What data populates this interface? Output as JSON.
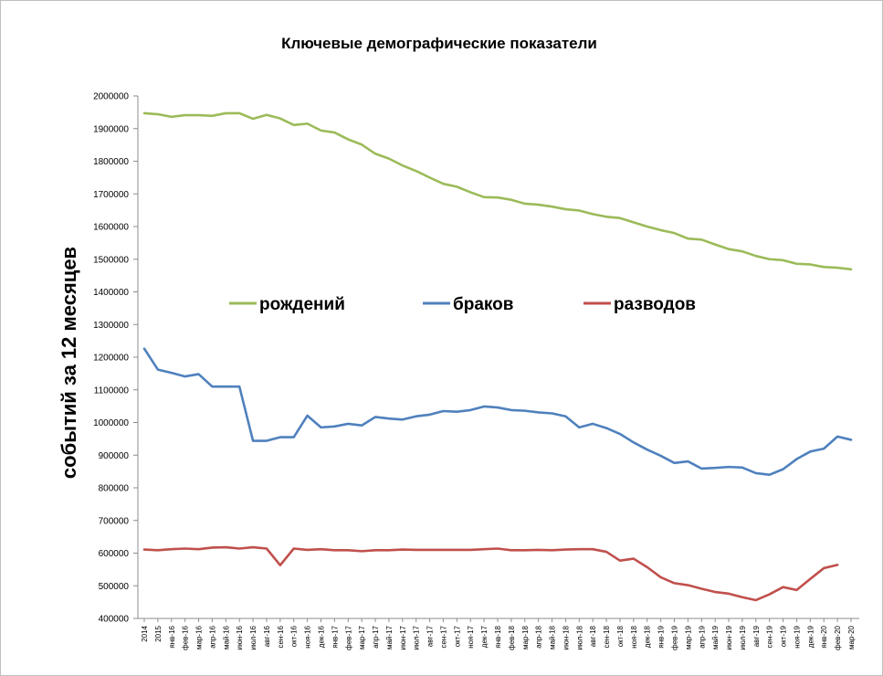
{
  "chart_data": {
    "type": "line",
    "title": "Ключевые демографические показатели",
    "ylabel": "событий за 12  месяцев",
    "xlabel": "",
    "ylim": [
      400000,
      2000000
    ],
    "yticks": [
      400000,
      500000,
      600000,
      700000,
      800000,
      900000,
      1000000,
      1100000,
      1200000,
      1300000,
      1400000,
      1500000,
      1600000,
      1700000,
      1800000,
      1900000,
      2000000
    ],
    "grid": "none",
    "legend": "center",
    "x": [
      "2014",
      "2015",
      "янв-16",
      "фев-16",
      "мар-16",
      "апр-16",
      "май-16",
      "июн-16",
      "июл-16",
      "авг-16",
      "сен-16",
      "окт-16",
      "ноя-16",
      "дек-16",
      "янв-17",
      "фев-17",
      "мар-17",
      "апр-17",
      "май-17",
      "июн-17",
      "июл-17",
      "авг-17",
      "сен-17",
      "окт-17",
      "ноя-17",
      "дек-17",
      "янв-18",
      "фев-18",
      "мар-18",
      "апр-18",
      "май-18",
      "июн-18",
      "июл-18",
      "авг-18",
      "сен-18",
      "окт-18",
      "ноя-18",
      "дек-18",
      "янв-19",
      "фев-19",
      "мар-19",
      "апр-19",
      "май-19",
      "июн-19",
      "июл-19",
      "авг-19",
      "сен-19",
      "окт-19",
      "ноя-19",
      "дек-19",
      "янв-20",
      "фев-20",
      "мар-20"
    ],
    "xticks_shown": [
      "2014",
      "2015",
      "янв-16",
      "фев-16",
      "мар-16",
      "апр-16",
      "май-16",
      "июн-16",
      "июл-16",
      "авг-16",
      "сен-16",
      "окт-16",
      "ноя-16",
      "дек-16",
      "янв-17",
      "фев-17",
      "мар-17",
      "апр-17",
      "май-17",
      "июн-17",
      "июл-17",
      "авг-17",
      "сен-17",
      "окт-17",
      "ноя-17",
      "дек-17",
      "янв-18",
      "фев-18",
      "мар-18",
      "апр-18",
      "май-18",
      "июн-18",
      "июл-18",
      "авг-18",
      "сен-18",
      "окт-18",
      "ноя-18",
      "дек-18",
      "янв-19",
      "фев-19",
      "мар-19",
      "апр-19",
      "май-19",
      "июн-19",
      "июл-19",
      "авг-19",
      "сен-19",
      "окт-19",
      "ноя-19",
      "дек-19",
      "янв-20",
      "фев-20",
      "мар-20"
    ],
    "series": [
      {
        "name": "рождений",
        "color": "#9bbb59",
        "values": [
          1947000,
          1944000,
          1936000,
          1941000,
          1941000,
          1939000,
          1947000,
          1947000,
          1930000,
          1942000,
          1931000,
          1911000,
          1915000,
          1894000,
          1888000,
          1867000,
          1851000,
          1823000,
          1808000,
          1787000,
          1770000,
          1750000,
          1731000,
          1722000,
          1705000,
          1690000,
          1689000,
          1682000,
          1670000,
          1667000,
          1661000,
          1653000,
          1649000,
          1638000,
          1630000,
          1626000,
          1613000,
          1600000,
          1589000,
          1580000,
          1563000,
          1560000,
          1545000,
          1531000,
          1524000,
          1510000,
          1500000,
          1497000,
          1486000,
          1484000,
          1476000,
          1474000,
          1469000
        ]
      },
      {
        "name": "браков",
        "color": "#4f81bd",
        "values": [
          1226000,
          1162000,
          1152000,
          1141000,
          1148000,
          1110000,
          1110000,
          1110000,
          944000,
          944000,
          955000,
          955000,
          1021000,
          985000,
          988000,
          996000,
          991000,
          1017000,
          1012000,
          1009000,
          1019000,
          1024000,
          1035000,
          1033000,
          1038000,
          1049000,
          1046000,
          1038000,
          1036000,
          1031000,
          1028000,
          1019000,
          985000,
          996000,
          983000,
          965000,
          939000,
          917000,
          898000,
          876000,
          881000,
          859000,
          861000,
          864000,
          862000,
          845000,
          840000,
          857000,
          888000,
          911000,
          920000,
          957000,
          947000
        ]
      },
      {
        "name": "разводов",
        "color": "#c0504d",
        "values": [
          611000,
          609000,
          612000,
          614000,
          612000,
          617000,
          618000,
          614000,
          618000,
          614000,
          563000,
          614000,
          610000,
          612000,
          609000,
          609000,
          606000,
          609000,
          609000,
          611000,
          610000,
          610000,
          610000,
          610000,
          610000,
          612000,
          614000,
          609000,
          609000,
          610000,
          609000,
          611000,
          612000,
          612000,
          604000,
          577000,
          583000,
          557000,
          526000,
          508000,
          502000,
          491000,
          481000,
          476000,
          465000,
          456000,
          474000,
          496000,
          487000,
          521000,
          554000,
          564000,
          null
        ]
      }
    ]
  }
}
